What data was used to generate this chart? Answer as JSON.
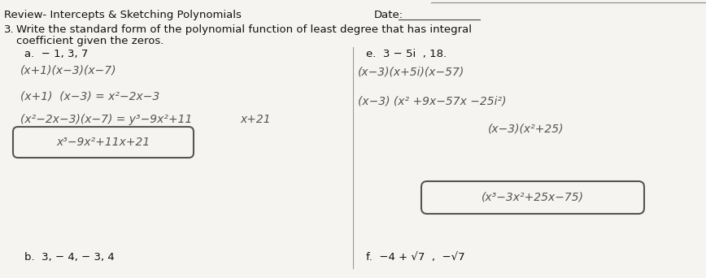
{
  "bg_color": "#e8e6e2",
  "paper_color": "#f5f4f1",
  "title_left": "Review- Intercepts & Sketching Polynomials",
  "date_label": "Date:",
  "problem_number": "3.",
  "problem_line1": "Write the standard form of the polynomial function of least degree that has integral",
  "problem_line2": "coefficient given the zeros.",
  "sub_a_label": "a.  − 1, 3, 7",
  "sub_a_line1": "(x+1)(x−3)(x−7)",
  "sub_a_line2": "(x+1)  (x−3) = x²−2x−3",
  "sub_a_line3": "(x²−2x−3)(x−7) = y³−9x²+11",
  "sub_a_line3b": "x+21",
  "sub_a_boxed": "x³−9x²+11x+21",
  "sub_b_label": "b.  3, − 4, − 3, 4",
  "sub_e_label": "e.  3 − 5i  , 18.",
  "sub_e_line1": "(x−3)(x+5i)(x−57)",
  "sub_e_line2": "(x−3) (x² +9x−57x −25i²)",
  "sub_e_line3": "(x−3)(x²+25)",
  "sub_e_boxed": "(x³−3x²+25x−75)",
  "sub_f_label": "f.  −4 + √7  ,  −√7",
  "pencil_color": "#555555",
  "ink_color": "#333333",
  "title_color": "#111111"
}
